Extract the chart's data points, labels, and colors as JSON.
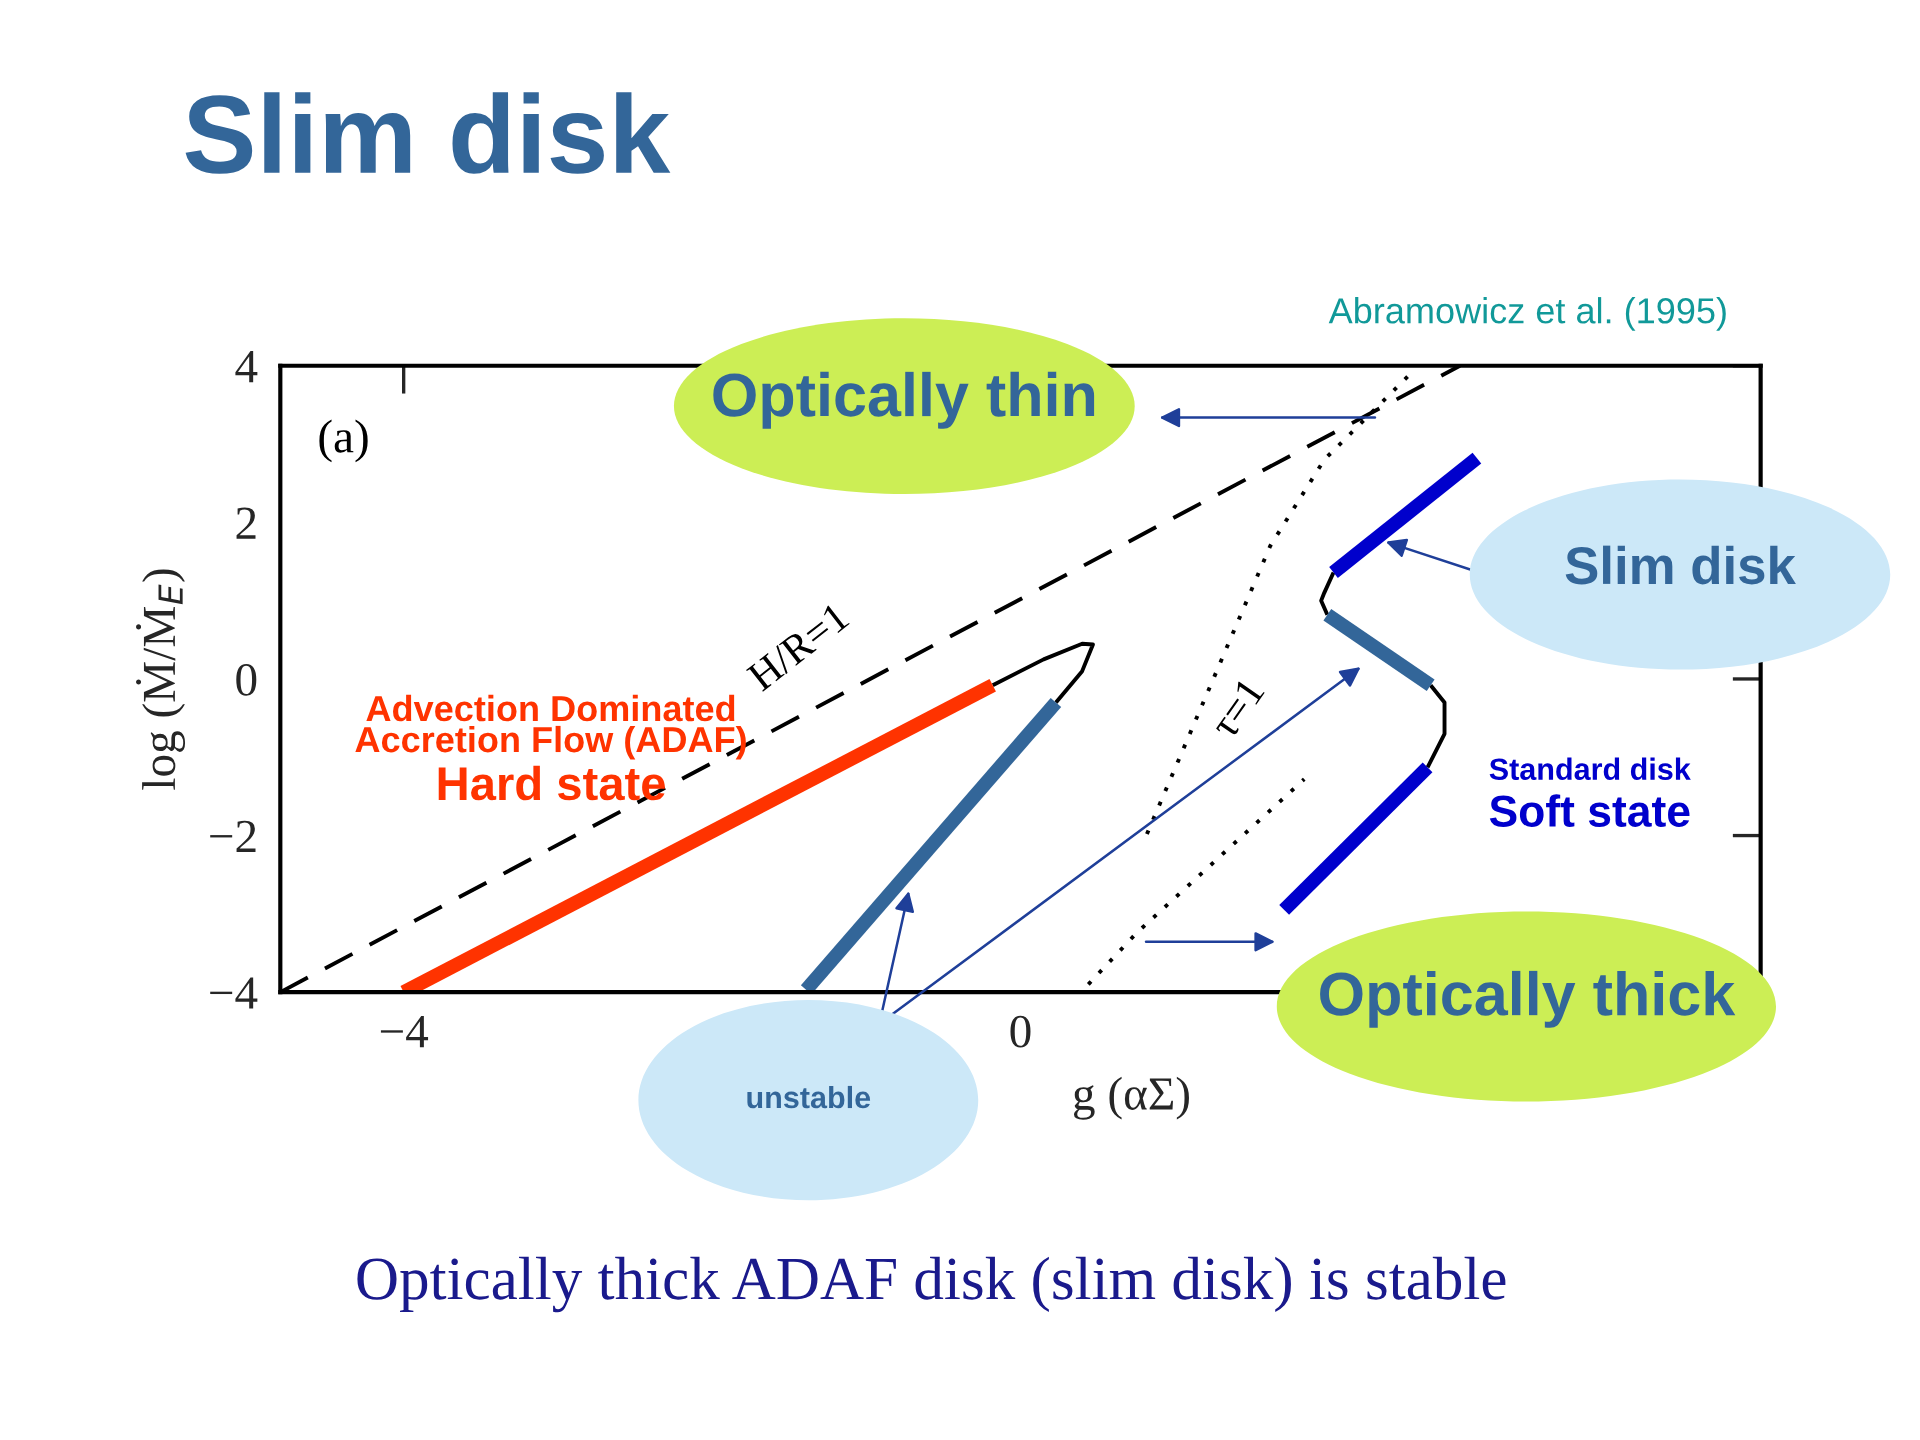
{
  "chart_data": {
    "type": "line",
    "title": "Slim disk",
    "xlabel": "g (αΣ)",
    "ylabel": "log (Ṁ/Ṁ$_{E}$)",
    "xlim": [
      -4.8,
      4.8
    ],
    "xticks": [
      -4,
      0
    ],
    "ylim": [
      -4,
      4
    ],
    "yticks": [
      -4,
      -2,
      0,
      2,
      4
    ],
    "grid": false,
    "legend": false,
    "marker": "none",
    "series": [
      {
        "color": "#000000",
        "line_style": "dashed",
        "x": [
          -4.8,
          2.85
        ],
        "values": [
          -4,
          4
        ]
      },
      {
        "color": "#000000",
        "line_style": "dotted",
        "x": [
          0.82,
          1.62,
          1.97,
          2.53
        ],
        "values": [
          -1.98,
          1.7,
          2.8,
          3.9
        ]
      },
      {
        "color": "#000000",
        "line_style": "dotted",
        "x": [
          0.44,
          0.75,
          1.84
        ],
        "values": [
          -3.9,
          -3.25,
          -1.28
        ]
      },
      {
        "color": "#000000",
        "x": [
          -0.18,
          0.15,
          0.4,
          0.47,
          0.4,
          0.23
        ],
        "values": [
          -0.08,
          0.25,
          0.45,
          0.44,
          0.1,
          -0.3
        ]
      },
      {
        "color": "#000000",
        "x": [
          2.64,
          2.75,
          2.75,
          2.66
        ],
        "values": [
          -1.13,
          -0.7,
          -0.3,
          -0.08
        ]
      },
      {
        "color": "#000000",
        "x": [
          1.99,
          1.95,
          1.97,
          2.03
        ],
        "values": [
          0.82,
          1.0,
          1.1,
          1.36
        ]
      },
      {
        "color": "#ff3300",
        "x": [
          -4,
          -0.18
        ],
        "values": [
          -4,
          -0.08
        ]
      },
      {
        "color": "#336699",
        "x": [
          0.23,
          -1.39
        ],
        "values": [
          -0.3,
          -3.97
        ]
      },
      {
        "color": "#336699",
        "x": [
          2.66,
          1.99
        ],
        "values": [
          -0.08,
          0.82
        ]
      },
      {
        "color": "#0000cc",
        "x": [
          1.71,
          2.64
        ],
        "values": [
          -2.95,
          -1.13
        ]
      },
      {
        "color": "#0000cc",
        "x": [
          2.03,
          2.96
        ],
        "values": [
          1.36,
          2.82
        ]
      }
    ],
    "annotations": [
      "Abramowicz et al. (1995)",
      "(a)",
      "H/R=1",
      "τ=1",
      "Advection Dominated\nAccretion Flow (ADAF)",
      "Hard state",
      "Standard disk",
      "Soft state",
      "Optically thin",
      "Slim disk",
      "Optically thick",
      "unstable",
      "Optically thick ADAF disk (slim disk) is stable"
    ]
  }
}
